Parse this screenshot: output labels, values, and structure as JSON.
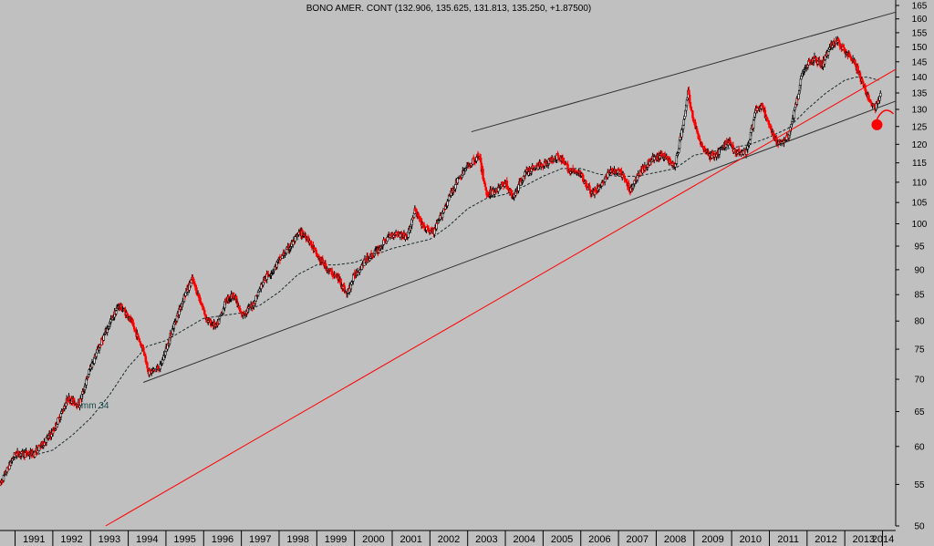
{
  "chart_data": {
    "type": "candlestick",
    "title": "BONO AMER. CONT (132.906, 135.625, 131.813, 135.250, +1.87500)",
    "y_scale": "log",
    "ylim": [
      50,
      165
    ],
    "y_ticks": [
      50,
      55,
      60,
      65,
      70,
      75,
      80,
      85,
      90,
      95,
      100,
      105,
      110,
      115,
      120,
      125,
      130,
      135,
      140,
      145,
      150,
      155,
      160,
      165
    ],
    "xlim": [
      1990.6,
      2014.35
    ],
    "x_ticks": [
      "1991",
      "1992",
      "1993",
      "1994",
      "1995",
      "1996",
      "1997",
      "1998",
      "1999",
      "2000",
      "2001",
      "2002",
      "2003",
      "2004",
      "2005",
      "2006",
      "2007",
      "2008",
      "2009",
      "2010",
      "2011",
      "2012",
      "2013",
      "2014"
    ],
    "moving_average_label": "mm 34",
    "colors": {
      "up": "#000000",
      "down": "#ff0000",
      "background": "#c0c0c0",
      "support_line": "#ff0000",
      "channel_line": "#303030",
      "marker": "#ff0000"
    },
    "price_path": [
      [
        1990.6,
        55
      ],
      [
        1991.0,
        59
      ],
      [
        1991.5,
        59
      ],
      [
        1992.0,
        62
      ],
      [
        1992.4,
        67
      ],
      [
        1992.7,
        66
      ],
      [
        1993.0,
        72
      ],
      [
        1993.4,
        78
      ],
      [
        1993.75,
        83
      ],
      [
        1994.0,
        81
      ],
      [
        1994.4,
        75
      ],
      [
        1994.55,
        71
      ],
      [
        1994.85,
        72
      ],
      [
        1995.2,
        79
      ],
      [
        1995.5,
        85
      ],
      [
        1995.7,
        88
      ],
      [
        1995.9,
        84
      ],
      [
        1996.1,
        80
      ],
      [
        1996.35,
        79
      ],
      [
        1996.6,
        84
      ],
      [
        1996.8,
        85
      ],
      [
        1997.0,
        81
      ],
      [
        1997.3,
        83
      ],
      [
        1997.6,
        88
      ],
      [
        1997.85,
        90
      ],
      [
        1998.0,
        92
      ],
      [
        1998.3,
        95
      ],
      [
        1998.55,
        98
      ],
      [
        1998.75,
        97
      ],
      [
        1999.0,
        93
      ],
      [
        1999.3,
        90
      ],
      [
        1999.6,
        88
      ],
      [
        1999.8,
        85
      ],
      [
        2000.0,
        89
      ],
      [
        2000.3,
        92
      ],
      [
        2000.6,
        94
      ],
      [
        2000.9,
        97
      ],
      [
        2001.1,
        98
      ],
      [
        2001.4,
        97
      ],
      [
        2001.6,
        103
      ],
      [
        2001.85,
        99
      ],
      [
        2002.1,
        98
      ],
      [
        2002.4,
        104
      ],
      [
        2002.7,
        110
      ],
      [
        2003.0,
        114
      ],
      [
        2003.3,
        117
      ],
      [
        2003.5,
        107
      ],
      [
        2003.75,
        108
      ],
      [
        2004.0,
        110
      ],
      [
        2004.2,
        106
      ],
      [
        2004.5,
        112
      ],
      [
        2004.8,
        114
      ],
      [
        2005.1,
        115
      ],
      [
        2005.4,
        117
      ],
      [
        2005.7,
        113
      ],
      [
        2006.0,
        112
      ],
      [
        2006.3,
        107
      ],
      [
        2006.5,
        109
      ],
      [
        2006.8,
        113
      ],
      [
        2007.1,
        112
      ],
      [
        2007.3,
        108
      ],
      [
        2007.6,
        113
      ],
      [
        2007.9,
        116
      ],
      [
        2008.2,
        117
      ],
      [
        2008.5,
        114
      ],
      [
        2008.75,
        128
      ],
      [
        2008.85,
        135
      ],
      [
        2009.0,
        126
      ],
      [
        2009.2,
        120
      ],
      [
        2009.4,
        117
      ],
      [
        2009.6,
        117
      ],
      [
        2009.9,
        121
      ],
      [
        2010.1,
        118
      ],
      [
        2010.4,
        118
      ],
      [
        2010.65,
        130
      ],
      [
        2010.8,
        131
      ],
      [
        2011.0,
        125
      ],
      [
        2011.2,
        120
      ],
      [
        2011.5,
        122
      ],
      [
        2011.7,
        131
      ],
      [
        2011.85,
        140
      ],
      [
        2012.0,
        144
      ],
      [
        2012.2,
        146
      ],
      [
        2012.4,
        144
      ],
      [
        2012.6,
        150
      ],
      [
        2012.8,
        152
      ],
      [
        2013.0,
        149
      ],
      [
        2013.2,
        146
      ],
      [
        2013.35,
        142
      ],
      [
        2013.5,
        137
      ],
      [
        2013.65,
        133
      ],
      [
        2013.8,
        130
      ],
      [
        2013.95,
        135
      ]
    ],
    "moving_average_path": [
      [
        1991.0,
        58.5
      ],
      [
        1991.5,
        58.8
      ],
      [
        1992.0,
        59.5
      ],
      [
        1992.5,
        61.5
      ],
      [
        1993.0,
        64
      ],
      [
        1993.5,
        67.5
      ],
      [
        1994.0,
        72
      ],
      [
        1994.5,
        75.5
      ],
      [
        1995.0,
        76.5
      ],
      [
        1995.5,
        78.5
      ],
      [
        1996.0,
        80.5
      ],
      [
        1996.5,
        81
      ],
      [
        1997.0,
        81.5
      ],
      [
        1997.5,
        83
      ],
      [
        1998.0,
        85.5
      ],
      [
        1998.5,
        89
      ],
      [
        1999.0,
        91
      ],
      [
        1999.5,
        91
      ],
      [
        2000.0,
        91.5
      ],
      [
        2000.5,
        93
      ],
      [
        2001.0,
        94.5
      ],
      [
        2001.5,
        95.5
      ],
      [
        2002.0,
        96.5
      ],
      [
        2002.5,
        99.5
      ],
      [
        2003.0,
        103.5
      ],
      [
        2003.5,
        106
      ],
      [
        2004.0,
        107
      ],
      [
        2004.5,
        109
      ],
      [
        2005.0,
        111.5
      ],
      [
        2005.5,
        113.5
      ],
      [
        2006.0,
        113.5
      ],
      [
        2006.5,
        112
      ],
      [
        2007.0,
        111.5
      ],
      [
        2007.5,
        111.5
      ],
      [
        2008.0,
        112.5
      ],
      [
        2008.5,
        113.5
      ],
      [
        2009.0,
        117
      ],
      [
        2009.5,
        118
      ],
      [
        2010.0,
        119
      ],
      [
        2010.5,
        120
      ],
      [
        2011.0,
        122
      ],
      [
        2011.5,
        124.5
      ],
      [
        2012.0,
        130
      ],
      [
        2012.5,
        135
      ],
      [
        2013.0,
        139
      ],
      [
        2013.3,
        140
      ],
      [
        2013.6,
        140
      ],
      [
        2013.9,
        139
      ]
    ],
    "trendlines": [
      {
        "name": "upper-channel",
        "start": [
          2003.1,
          123.5
        ],
        "end": [
          2014.35,
          162.5
        ]
      },
      {
        "name": "lower-channel",
        "start": [
          1994.4,
          69.5
        ],
        "end": [
          2014.35,
          132.5
        ]
      },
      {
        "name": "red-support",
        "start": [
          1993.4,
          50
        ],
        "end": [
          2014.35,
          142.5
        ]
      }
    ],
    "marker": {
      "x": 2013.95,
      "y": 125.5
    },
    "ma_label_position": [
      1992.75,
      65.5
    ]
  }
}
